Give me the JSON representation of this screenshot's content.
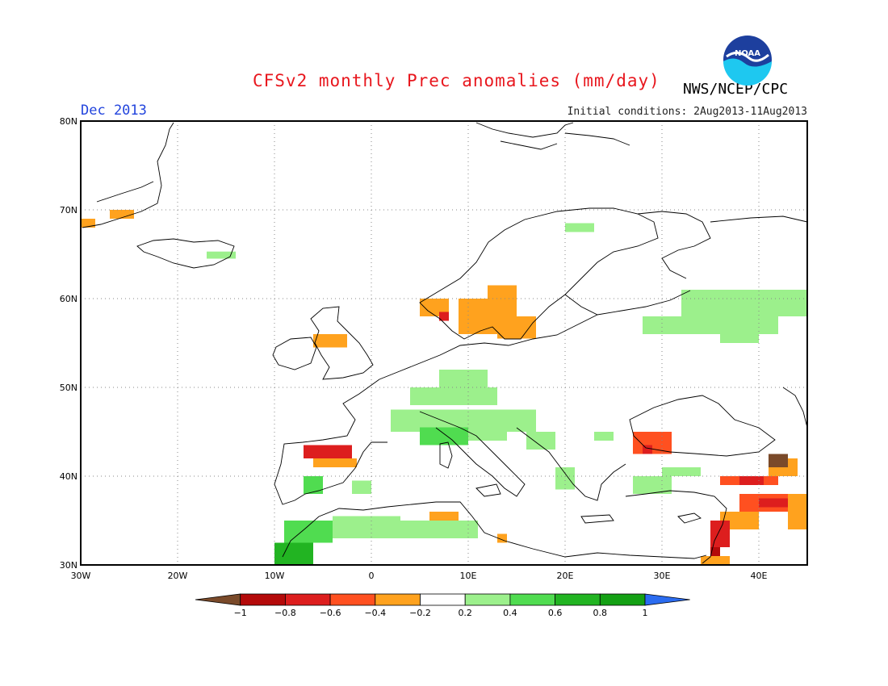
{
  "title": "CFSv2 monthly Prec anomalies (mm/day)",
  "agency": "NWS/NCEP/CPC",
  "logo_text": "NOAA",
  "valid_month": "Dec 2013",
  "initial_conditions": "Initial conditions: 2Aug2013-11Aug2013",
  "map": {
    "lon_range": [
      -30,
      45
    ],
    "lat_range": [
      30,
      80
    ],
    "lon_ticks": [
      {
        "value": -30,
        "label": "30W"
      },
      {
        "value": -20,
        "label": "20W"
      },
      {
        "value": -10,
        "label": "10W"
      },
      {
        "value": 0,
        "label": "0"
      },
      {
        "value": 10,
        "label": "10E"
      },
      {
        "value": 20,
        "label": "20E"
      },
      {
        "value": 30,
        "label": "30E"
      },
      {
        "value": 40,
        "label": "40E"
      }
    ],
    "lat_ticks": [
      {
        "value": 30,
        "label": "30N"
      },
      {
        "value": 40,
        "label": "40N"
      },
      {
        "value": 50,
        "label": "50N"
      },
      {
        "value": 60,
        "label": "60N"
      },
      {
        "value": 70,
        "label": "70N"
      },
      {
        "value": 80,
        "label": "80N"
      }
    ],
    "grid": "dotted",
    "anomaly_cells": [
      {
        "lon": -30,
        "lat": 68,
        "lon2": -28.5,
        "lat2": 69,
        "value": -0.3
      },
      {
        "lon": -27,
        "lat": 69,
        "lon2": -24.5,
        "lat2": 70,
        "value": -0.3
      },
      {
        "lon": -17,
        "lat": 64.5,
        "lon2": -14,
        "lat2": 65.3,
        "value": 0.3
      },
      {
        "lon": -6,
        "lat": 54.5,
        "lon2": -2.5,
        "lat2": 56,
        "value": -0.3
      },
      {
        "lon": 5,
        "lat": 58,
        "lon2": 8,
        "lat2": 60,
        "value": -0.3
      },
      {
        "lon": 9,
        "lat": 56,
        "lon2": 15,
        "lat2": 60,
        "value": -0.3
      },
      {
        "lon": 12,
        "lat": 59,
        "lon2": 15,
        "lat2": 61.5,
        "value": -0.3
      },
      {
        "lon": 13,
        "lat": 55.5,
        "lon2": 17,
        "lat2": 58,
        "value": -0.3
      },
      {
        "lon": 7,
        "lat": 57.5,
        "lon2": 8,
        "lat2": 58.5,
        "value": -0.7
      },
      {
        "lon": 20,
        "lat": 67.5,
        "lon2": 23,
        "lat2": 68.5,
        "value": 0.3
      },
      {
        "lon": 28,
        "lat": 56,
        "lon2": 42,
        "lat2": 58,
        "value": 0.3
      },
      {
        "lon": 32,
        "lat": 58,
        "lon2": 45,
        "lat2": 61,
        "value": 0.3
      },
      {
        "lon": 36,
        "lat": 55,
        "lon2": 40,
        "lat2": 56,
        "value": 0.3
      },
      {
        "lon": 7,
        "lat": 50,
        "lon2": 12,
        "lat2": 52,
        "value": 0.3
      },
      {
        "lon": 4,
        "lat": 48,
        "lon2": 13,
        "lat2": 50,
        "value": 0.3
      },
      {
        "lon": 2,
        "lat": 45,
        "lon2": 17,
        "lat2": 47.5,
        "value": 0.3
      },
      {
        "lon": 5,
        "lat": 43.5,
        "lon2": 10,
        "lat2": 45.5,
        "value": 0.5
      },
      {
        "lon": 10,
        "lat": 44,
        "lon2": 14,
        "lat2": 45.5,
        "value": 0.3
      },
      {
        "lon": 16,
        "lat": 43,
        "lon2": 19,
        "lat2": 45,
        "value": 0.3
      },
      {
        "lon": 23,
        "lat": 44,
        "lon2": 25,
        "lat2": 45,
        "value": 0.3
      },
      {
        "lon": -7,
        "lat": 42,
        "lon2": -2,
        "lat2": 43.5,
        "value": -0.7
      },
      {
        "lon": -6,
        "lat": 41,
        "lon2": -1.5,
        "lat2": 42,
        "value": -0.3
      },
      {
        "lon": -7,
        "lat": 38,
        "lon2": -5,
        "lat2": 40,
        "value": 0.5
      },
      {
        "lon": -2,
        "lat": 38,
        "lon2": 0,
        "lat2": 39.5,
        "value": 0.3
      },
      {
        "lon": -10,
        "lat": 30,
        "lon2": -6,
        "lat2": 32.5,
        "value": 0.7
      },
      {
        "lon": -9,
        "lat": 32.5,
        "lon2": -4,
        "lat2": 35,
        "value": 0.5
      },
      {
        "lon": -4,
        "lat": 33,
        "lon2": 3,
        "lat2": 35.5,
        "value": 0.3
      },
      {
        "lon": 3,
        "lat": 33,
        "lon2": 11,
        "lat2": 35,
        "value": 0.3
      },
      {
        "lon": 6,
        "lat": 35,
        "lon2": 9,
        "lat2": 36,
        "value": -0.3
      },
      {
        "lon": 9,
        "lat": 33,
        "lon2": 11,
        "lat2": 35,
        "value": 0.3
      },
      {
        "lon": 19,
        "lat": 38.5,
        "lon2": 21,
        "lat2": 41,
        "value": 0.3
      },
      {
        "lon": 27,
        "lat": 38,
        "lon2": 31,
        "lat2": 40,
        "value": 0.3
      },
      {
        "lon": 30,
        "lat": 40,
        "lon2": 34,
        "lat2": 41,
        "value": 0.3
      },
      {
        "lon": 27,
        "lat": 42.5,
        "lon2": 31,
        "lat2": 45,
        "value": -0.5
      },
      {
        "lon": 28,
        "lat": 42.5,
        "lon2": 29,
        "lat2": 43.5,
        "value": -0.7
      },
      {
        "lon": 36,
        "lat": 39,
        "lon2": 42,
        "lat2": 40,
        "value": -0.5
      },
      {
        "lon": 38,
        "lat": 39,
        "lon2": 40.5,
        "lat2": 40,
        "value": -0.7
      },
      {
        "lon": 41,
        "lat": 40,
        "lon2": 44,
        "lat2": 42,
        "value": -0.3
      },
      {
        "lon": 41,
        "lat": 41,
        "lon2": 43,
        "lat2": 42.5,
        "value": -1.1
      },
      {
        "lon": 38,
        "lat": 36,
        "lon2": 45,
        "lat2": 38,
        "value": -0.5
      },
      {
        "lon": 40,
        "lat": 36.5,
        "lon2": 43,
        "lat2": 37.5,
        "value": -0.7
      },
      {
        "lon": 36,
        "lat": 34,
        "lon2": 40,
        "lat2": 36,
        "value": -0.3
      },
      {
        "lon": 35,
        "lat": 32,
        "lon2": 37,
        "lat2": 35,
        "value": -0.7
      },
      {
        "lon": 35,
        "lat": 31,
        "lon2": 36,
        "lat2": 32,
        "value": -0.9
      },
      {
        "lon": 34,
        "lat": 30,
        "lon2": 37,
        "lat2": 31,
        "value": -0.3
      },
      {
        "lon": 43,
        "lat": 34,
        "lon2": 45,
        "lat2": 38,
        "value": -0.3
      },
      {
        "lon": 13,
        "lat": 32.5,
        "lon2": 14,
        "lat2": 33.5,
        "value": -0.3
      }
    ]
  },
  "legend": {
    "bins": [
      {
        "min": -1.5,
        "max": -1,
        "color": "#7a4a2a",
        "shape": "left-arrow"
      },
      {
        "min": -1,
        "max": -0.8,
        "color": "#b40a0a"
      },
      {
        "min": -0.8,
        "max": -0.6,
        "color": "#dd1e1e"
      },
      {
        "min": -0.6,
        "max": -0.4,
        "color": "#ff5020"
      },
      {
        "min": -0.4,
        "max": -0.2,
        "color": "#ffa21e"
      },
      {
        "min": -0.2,
        "max": 0.2,
        "color": "#ffffff"
      },
      {
        "min": 0.2,
        "max": 0.4,
        "color": "#9cf08c"
      },
      {
        "min": 0.4,
        "max": 0.6,
        "color": "#50dc50"
      },
      {
        "min": 0.6,
        "max": 0.8,
        "color": "#22b422"
      },
      {
        "min": 0.8,
        "max": 1,
        "color": "#14a014"
      },
      {
        "min": 1,
        "max": 1.5,
        "color": "#2b6cf0",
        "shape": "right-arrow"
      }
    ],
    "tick_labels": [
      "−1",
      "−0.8",
      "−0.6",
      "−0.4",
      "−0.2",
      "0.2",
      "0.4",
      "0.6",
      "0.8",
      "1"
    ]
  },
  "colors": {
    "title": "#e8171e",
    "valid_month": "#2244dd",
    "logo_blue": "#1d3f9e",
    "logo_cyan": "#1ec8f0"
  }
}
